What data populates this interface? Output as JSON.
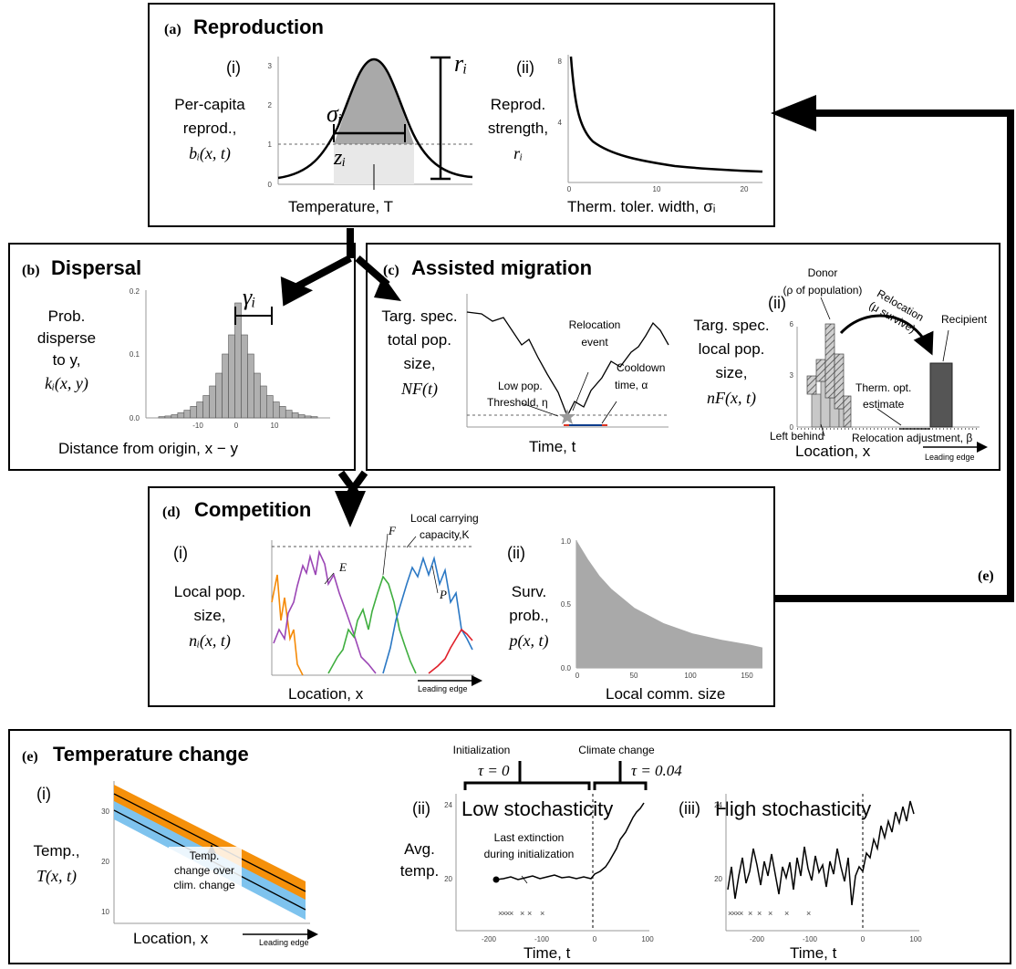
{
  "panels": {
    "a": {
      "tag": "(a)",
      "title": "Reproduction",
      "i": {
        "num": "(i)",
        "ylabel": [
          "Per-capita",
          "reprod.,"
        ],
        "ylabel_math": "bᵢ(x, t)",
        "xlabel": "Temperature, T",
        "sigma": "σᵢ",
        "z": "zᵢ",
        "r": "rᵢ",
        "yticks": [
          "0",
          "1",
          "2",
          "3"
        ]
      },
      "ii": {
        "num": "(ii)",
        "ylabel": [
          "Reprod.",
          "strength,"
        ],
        "ylabel_math": "rᵢ",
        "xlabel": "Therm. toler. width, σᵢ",
        "yticks": [
          "4",
          "8"
        ],
        "xticks": [
          "0",
          "10",
          "20"
        ]
      }
    },
    "b": {
      "tag": "(b)",
      "title": "Dispersal",
      "ylabel": [
        "Prob.",
        "disperse",
        "to y,"
      ],
      "ylabel_math": "kᵢ(x, y)",
      "xlabel": "Distance from origin, x − y",
      "gamma": "γᵢ",
      "yticks": [
        "0.0",
        "0.1",
        "0.2"
      ],
      "xticks": [
        "-10",
        "0",
        "10"
      ]
    },
    "c": {
      "tag": "(c)",
      "title": "Assisted migration",
      "i": {
        "ylabel": [
          "Targ. spec.",
          "total pop.",
          "size,"
        ],
        "ylabel_math": "NF(t)",
        "xlabel": "Time, t",
        "event": [
          "Relocation",
          "event"
        ],
        "threshold": [
          "Low pop.",
          "Threshold, η"
        ],
        "cooldown": [
          "Cooldown",
          "time, α"
        ]
      },
      "ii": {
        "num": "(ii)",
        "ylabel": [
          "Targ. spec.",
          "local pop.",
          "size,"
        ],
        "ylabel_math": "nF(x, t)",
        "xlabel": "Location, x",
        "donor": [
          "Donor",
          "(ρ of population)"
        ],
        "relocation": [
          "Relocation",
          "(μ survive)"
        ],
        "recipient": "Recipient",
        "therm": [
          "Therm. opt.",
          "estimate"
        ],
        "left_behind": "Left behind",
        "adjustment": "Relocation adjustment, β",
        "leading_edge": "Leading edge",
        "yticks": [
          "0",
          "3",
          "6"
        ]
      }
    },
    "d": {
      "tag": "(d)",
      "title": "Competition",
      "i": {
        "num": "(i)",
        "ylabel": [
          "Local pop.",
          "size,"
        ],
        "ylabel_math": "nᵢ(x, t)",
        "xlabel": "Location, x",
        "leading_edge": "Leading edge",
        "carrying": [
          "Local carrying",
          "capacity,K"
        ],
        "species": [
          "E",
          "F",
          "P"
        ]
      },
      "ii": {
        "num": "(ii)",
        "ylabel": [
          "Surv.",
          "prob.,"
        ],
        "ylabel_math": "p(x, t)",
        "xlabel": "Local comm. size",
        "yticks": [
          "0.0",
          "0.5",
          "1.0"
        ],
        "xticks": [
          "0",
          "50",
          "100",
          "150"
        ]
      }
    },
    "e": {
      "tag": "(e)",
      "title": "Temperature change",
      "loop_tag": "(e)",
      "i": {
        "num": "(i)",
        "ylabel": [
          "Temp.,"
        ],
        "ylabel_math": "T(x, t)",
        "xlabel": "Location, x",
        "leading_edge": "Leading edge",
        "annotation": [
          "Temp.",
          "change over",
          "clim. change"
        ],
        "yticks": [
          "10",
          "20",
          "30"
        ]
      },
      "ii": {
        "num": "(ii)",
        "title": "Low stochasticity",
        "ylabel": [
          "Avg.",
          "temp."
        ],
        "xlabel": "Time, t",
        "init_label": "Initialization",
        "climate_label": "Climate change",
        "tau0": "τ = 0",
        "tau1": "τ = 0.04",
        "extinction": [
          "Last extinction",
          "during initialization"
        ],
        "yticks": [
          "20",
          "24"
        ],
        "xticks": [
          "-200",
          "-100",
          "0",
          "100"
        ]
      },
      "iii": {
        "num": "(iii)",
        "title": "High stochasticity",
        "xlabel": "Time, t",
        "yticks": [
          "20",
          "24"
        ],
        "xticks": [
          "-200",
          "-100",
          "0",
          "100"
        ]
      }
    }
  },
  "colors": {
    "gray_fill": "#a9a9a9",
    "hist_fill": "#b0b0b0",
    "orange": "#f5900a",
    "blue_band": "#7ec3ee",
    "species_orange": "#f58a07",
    "species_purple": "#9b46b5",
    "species_green": "#3fae3f",
    "species_blue": "#2b78c4",
    "species_red": "#e0202a",
    "recipient": "#555555"
  },
  "chart_data": [
    {
      "type": "area",
      "xlabel": "Temperature, T",
      "ylim": [
        0,
        3.5
      ],
      "series": [
        {
          "values_x": [
            -5,
            -4,
            -3,
            -2,
            -1,
            0,
            1,
            2,
            3,
            4,
            5
          ],
          "values": [
            0.2,
            0.25,
            0.4,
            0.8,
            1.8,
            3.3,
            1.8,
            0.8,
            0.4,
            0.25,
            0.2
          ]
        }
      ]
    },
    {
      "type": "line",
      "xlabel": "Therm. toler. width, σᵢ",
      "xlim": [
        0,
        22
      ],
      "ylim": [
        0,
        8.5
      ],
      "x": [
        0.3,
        1,
        2,
        3,
        5,
        8,
        12,
        16,
        20,
        22
      ],
      "values": [
        8.2,
        4.5,
        3.0,
        2.3,
        1.7,
        1.3,
        1.0,
        0.85,
        0.72,
        0.66
      ]
    },
    {
      "type": "bar",
      "xlabel": "Distance from origin, x − y",
      "categories": [
        -12,
        -11,
        -10,
        -9,
        -8,
        -7,
        -6,
        -5,
        -4,
        -3,
        -2,
        -1,
        0,
        1,
        2,
        3,
        4,
        5,
        6,
        7,
        8,
        9,
        10,
        11,
        12
      ],
      "values": [
        0.002,
        0.003,
        0.005,
        0.008,
        0.012,
        0.018,
        0.025,
        0.035,
        0.05,
        0.07,
        0.1,
        0.13,
        0.18,
        0.13,
        0.1,
        0.07,
        0.05,
        0.035,
        0.025,
        0.018,
        0.012,
        0.008,
        0.005,
        0.003,
        0.002
      ],
      "ylim": [
        0,
        0.2
      ]
    },
    {
      "type": "area",
      "xlabel": "Local comm. size",
      "xlim": [
        0,
        160
      ],
      "ylim": [
        0,
        1
      ],
      "x": [
        0,
        10,
        20,
        30,
        50,
        75,
        100,
        125,
        150,
        160
      ],
      "values": [
        1.0,
        0.85,
        0.72,
        0.62,
        0.47,
        0.35,
        0.27,
        0.22,
        0.18,
        0.16
      ]
    }
  ]
}
